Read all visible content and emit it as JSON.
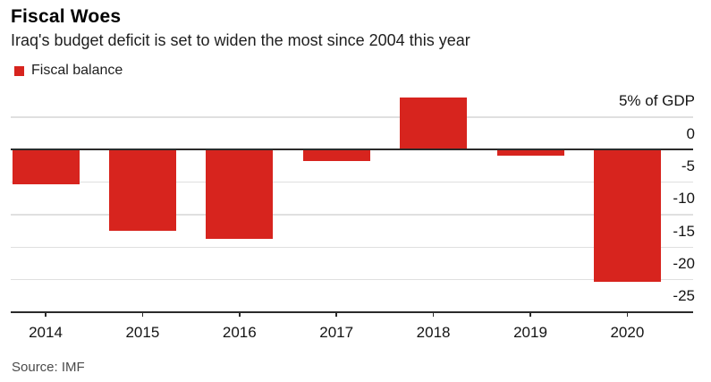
{
  "chart_data": {
    "type": "bar",
    "title": "Fiscal Woes",
    "subtitle": "Iraq's budget deficit is set to widen the most since 2004 this year",
    "legend": [
      {
        "label": "Fiscal balance",
        "color": "#d7241e"
      }
    ],
    "categories": [
      "2014",
      "2015",
      "2016",
      "2017",
      "2018",
      "2019",
      "2020"
    ],
    "values": [
      -5.3,
      -12.5,
      -13.7,
      -1.7,
      8.0,
      -0.9,
      -20.3
    ],
    "unit": "% of GDP",
    "ytick_values": [
      5,
      0,
      -5,
      -10,
      -15,
      -20,
      -25
    ],
    "ytick_labels": [
      "5% of GDP",
      "0",
      "-5",
      "-10",
      "-15",
      "-20",
      "-25"
    ],
    "ylim": [
      -25,
      10
    ],
    "grid": true,
    "legend_position": "top-left",
    "axis_label_side": "right",
    "bar_color": "#d7241e",
    "source": "Source: IMF"
  }
}
